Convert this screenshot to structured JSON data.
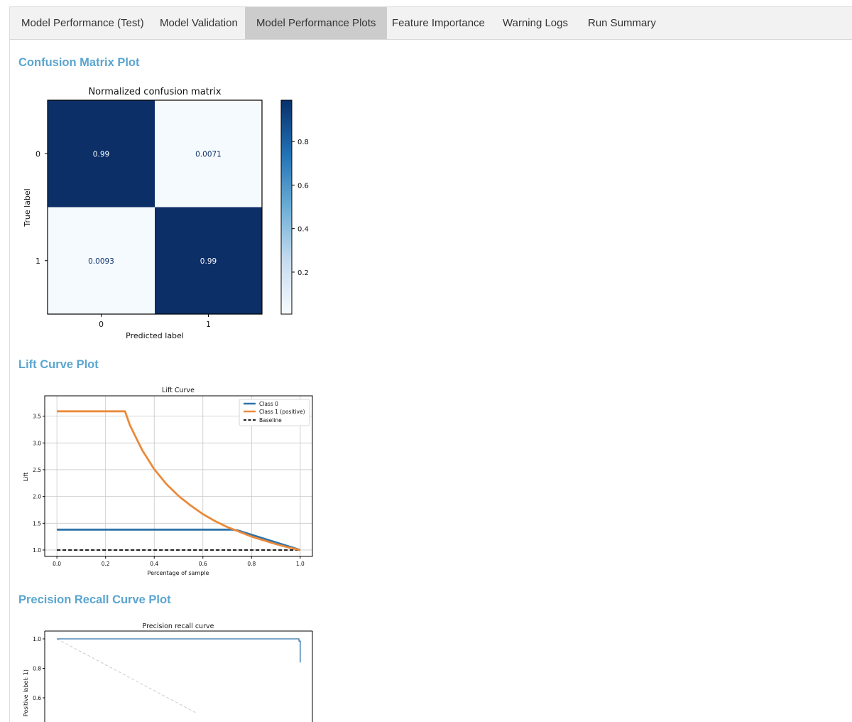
{
  "tabs": [
    {
      "label": "Model Performance (Test)",
      "active": false
    },
    {
      "label": "Model Validation",
      "active": false
    },
    {
      "label": "Model Performance Plots",
      "active": true
    },
    {
      "label": "Feature Importance",
      "active": false
    },
    {
      "label": "Warning Logs",
      "active": false
    },
    {
      "label": "Run Summary",
      "active": false
    }
  ],
  "sections": {
    "confusion_title": "Confusion Matrix Plot",
    "lift_title": "Lift Curve Plot",
    "pr_title": "Precision Recall Curve Plot"
  },
  "colors": {
    "accent": "#5aa5cf",
    "dark_blue": "#0c2f67",
    "light_blue": "#f5fafe",
    "class0": "#2e73aa",
    "class1": "#ea8a3b"
  },
  "chart_data": [
    {
      "type": "heatmap",
      "title": "Normalized confusion matrix",
      "xlabel": "Predicted label",
      "ylabel": "True label",
      "x_ticks": [
        "0",
        "1"
      ],
      "y_ticks": [
        "0",
        "1"
      ],
      "cells": [
        {
          "row": 0,
          "col": 0,
          "value": 0.99,
          "label": "0.99"
        },
        {
          "row": 0,
          "col": 1,
          "value": 0.0071,
          "label": "0.0071"
        },
        {
          "row": 1,
          "col": 0,
          "value": 0.0093,
          "label": "0.0093"
        },
        {
          "row": 1,
          "col": 1,
          "value": 0.99,
          "label": "0.99"
        }
      ],
      "colorbar_ticks": [
        "0.2",
        "0.4",
        "0.6",
        "0.8"
      ],
      "colorbar_range": [
        0.0071,
        0.99
      ]
    },
    {
      "type": "line",
      "title": "Lift Curve",
      "xlabel": "Percentage of sample",
      "ylabel": "Lift",
      "xlim": [
        -0.05,
        1.05
      ],
      "ylim": [
        0.88,
        3.88
      ],
      "x_ticks": [
        "0.0",
        "0.2",
        "0.4",
        "0.6",
        "0.8",
        "1.0"
      ],
      "y_ticks": [
        "1.0",
        "1.5",
        "2.0",
        "2.5",
        "3.0",
        "3.5"
      ],
      "grid": true,
      "legend_position": "top-right",
      "series": [
        {
          "name": "Class 0",
          "x": [
            0,
            0.72,
            0.74,
            1.0
          ],
          "y": [
            1.38,
            1.38,
            1.37,
            1.0
          ]
        },
        {
          "name": "Class 1 (positive)",
          "x": [
            0,
            0.28,
            0.3,
            0.35,
            0.4,
            0.45,
            0.5,
            0.55,
            0.6,
            0.65,
            0.7,
            0.75,
            0.8,
            0.85,
            0.9,
            0.95,
            1.0
          ],
          "y": [
            3.59,
            3.59,
            3.33,
            2.87,
            2.51,
            2.23,
            2.01,
            1.83,
            1.67,
            1.54,
            1.43,
            1.34,
            1.25,
            1.18,
            1.11,
            1.05,
            1.0
          ]
        },
        {
          "name": "Baseline",
          "x": [
            0,
            1.0
          ],
          "y": [
            1.0,
            1.0
          ]
        }
      ]
    },
    {
      "type": "line",
      "title": "Precision recall curve",
      "ylabel": "Positive label: 1)",
      "y_ticks": [
        "0.6",
        "0.8",
        "1.0"
      ],
      "xlim": [
        -0.05,
        1.05
      ],
      "ylim": [
        0.5,
        1.05
      ],
      "series": [
        {
          "name": "",
          "x": [
            0,
            0.99,
            0.995,
            0.995,
            1.0,
            1.0
          ],
          "y": [
            1.0,
            1.0,
            1.0,
            0.985,
            0.985,
            0.84
          ]
        },
        {
          "name": "",
          "x": [
            0,
            0.57
          ],
          "y": [
            1.0,
            0.5
          ]
        }
      ]
    }
  ]
}
